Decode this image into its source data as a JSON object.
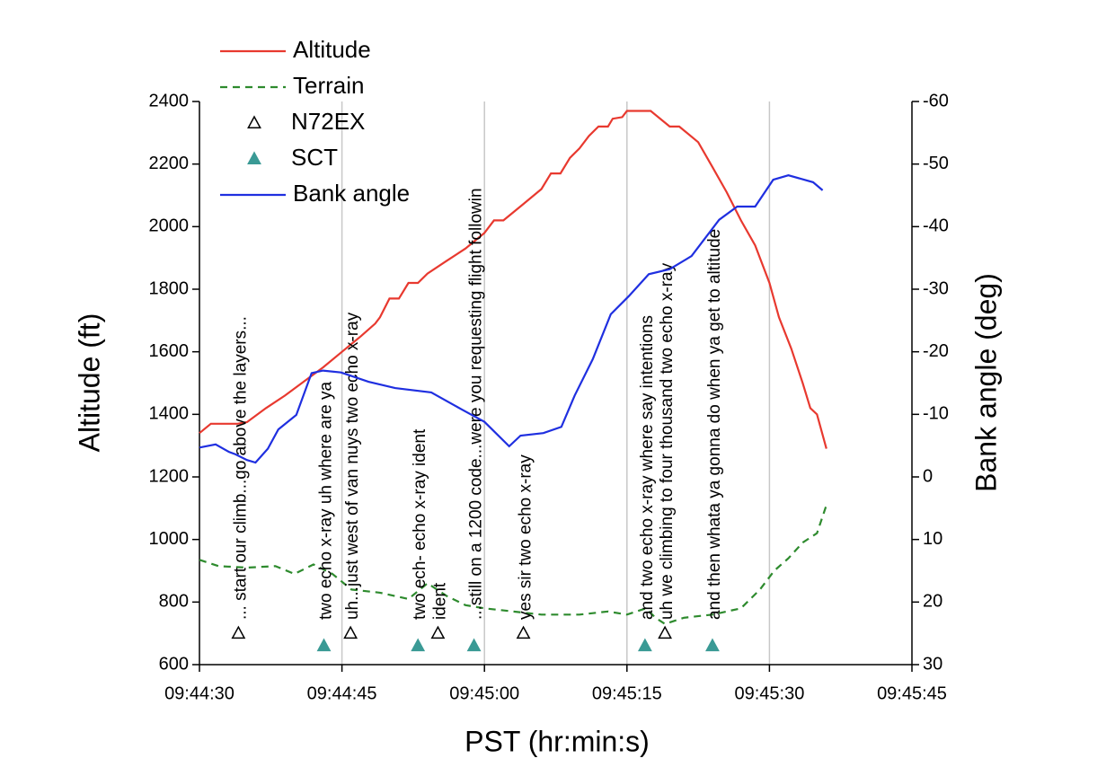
{
  "chart_data": {
    "type": "line",
    "xlabel": "PST (hr:min:s)",
    "ylabel": "Altitude (ft)",
    "y2label": "Bank angle (deg)",
    "xlim": [
      35070,
      35145
    ],
    "xticks": [
      {
        "value": 35070,
        "label": "09:44:30"
      },
      {
        "value": 35085,
        "label": "09:44:45"
      },
      {
        "value": 35100,
        "label": "09:45:00"
      },
      {
        "value": 35115,
        "label": "09:45:15"
      },
      {
        "value": 35130,
        "label": "09:45:30"
      },
      {
        "value": 35145,
        "label": "09:45:45"
      }
    ],
    "ylim": [
      600,
      2400
    ],
    "yticks": [
      600,
      800,
      1000,
      1200,
      1400,
      1600,
      1800,
      2000,
      2200,
      2400
    ],
    "y2lim": [
      30,
      -60
    ],
    "y2ticks": [
      30,
      20,
      10,
      0,
      -10,
      -20,
      -30,
      -40,
      -50,
      -60
    ],
    "grid_x": true,
    "series": [
      {
        "name": "Altitude",
        "color": "#e8392f",
        "style": "solid",
        "x": [
          35070,
          35071.2,
          35074,
          35075,
          35077,
          35079,
          35081,
          35083,
          35085,
          35087,
          35088.5,
          35089,
          35090,
          35091,
          35092,
          35093,
          35094,
          35096,
          35098,
          35100,
          35101,
          35102,
          35104,
          35106,
          35107,
          35108,
          35109,
          35110,
          35111,
          35112,
          35113,
          35113.5,
          35114.5,
          35115,
          35117.5,
          35119.5,
          35120.5,
          35122.5,
          35124,
          35125.5,
          35127,
          35128.5,
          35130,
          35131,
          35132.3,
          35133.5,
          35134.3,
          35135,
          35136
        ],
        "values": [
          1340,
          1370,
          1370,
          1375,
          1420,
          1460,
          1505,
          1550,
          1600,
          1650,
          1690,
          1710,
          1770,
          1770,
          1820,
          1820,
          1850,
          1890,
          1930,
          1980,
          2020,
          2020,
          2070,
          2120,
          2170,
          2170,
          2220,
          2250,
          2290,
          2320,
          2320,
          2345,
          2350,
          2370,
          2370,
          2320,
          2320,
          2270,
          2190,
          2110,
          2020,
          1940,
          1820,
          1710,
          1610,
          1500,
          1420,
          1400,
          1290
        ]
      },
      {
        "name": "Terrain",
        "color": "#2e8b2e",
        "style": "dashed",
        "x": [
          35070,
          35072,
          35075,
          35078,
          35080,
          35082,
          35084,
          35086,
          35089,
          35092,
          35094,
          35096,
          35098,
          35100,
          35103,
          35106,
          35110,
          35113,
          35115,
          35117,
          35118,
          35119,
          35121,
          35124,
          35127,
          35129,
          35130.5,
          35132,
          35133.5,
          35135,
          35136
        ],
        "values": [
          935,
          915,
          910,
          915,
          890,
          920,
          890,
          840,
          830,
          810,
          860,
          820,
          790,
          780,
          770,
          760,
          760,
          770,
          760,
          780,
          750,
          730,
          750,
          760,
          780,
          840,
          900,
          940,
          990,
          1020,
          1110
        ]
      },
      {
        "name": "N72EX",
        "color": "#000000",
        "marker": "open-triangle",
        "x": [
          35074.1,
          35085.9,
          35095.1,
          35104.1,
          35119
        ],
        "values": [
          700,
          700,
          700,
          700,
          700
        ],
        "labels": [
          "... start our climb...go above the layers...",
          "uh...just west of van nuys two echo x-ray",
          "ident",
          "yes sir two echo x-ray",
          "uh we climbing to four thousand two echo x-ray"
        ]
      },
      {
        "name": "SCT",
        "color": "#3a9a95",
        "marker": "filled-triangle",
        "x": [
          35083.1,
          35093,
          35098.9,
          35116.9,
          35124
        ],
        "values": [
          660,
          660,
          660,
          660,
          660
        ],
        "labels": [
          "two echo x-ray uh where are ya",
          "two ech- echo x-ray ident",
          "...still on a 1200 code...were you requesting flight followin",
          "and two echo x-ray where say intentions",
          "and then whata ya gonna do when ya get to altitude"
        ]
      },
      {
        "name": "Bank angle",
        "color": "#1f2fe0",
        "style": "solid",
        "axis": "y2",
        "x": [
          35070,
          35071.7,
          35073.1,
          35073.8,
          35075,
          35075.9,
          35077.2,
          35078.3,
          35080.2,
          35081.8,
          35083,
          35084.9,
          35087.8,
          35090.6,
          35094.4,
          35097.6,
          35100,
          35102.6,
          35103.8,
          35106.2,
          35108.1,
          35109.5,
          35111.4,
          35113.3,
          35115.2,
          35117.3,
          35119.5,
          35121.8,
          35124.7,
          35126.6,
          35128.5,
          35130.4,
          35132,
          35134.6,
          35135.6
        ],
        "values": [
          -4.7,
          -5.2,
          -4,
          -3.6,
          -2.7,
          -2.3,
          -4.5,
          -7.6,
          -9.9,
          -16.6,
          -17,
          -16.7,
          -15.2,
          -14.2,
          -13.5,
          -10.8,
          -8.8,
          -4.9,
          -6.6,
          -7,
          -8,
          -13,
          -18.8,
          -26,
          -28.9,
          -32.4,
          -33.2,
          -35.3,
          -41.1,
          -43.2,
          -43.2,
          -47.5,
          -48.2,
          -47.1,
          -45.8
        ]
      }
    ]
  }
}
